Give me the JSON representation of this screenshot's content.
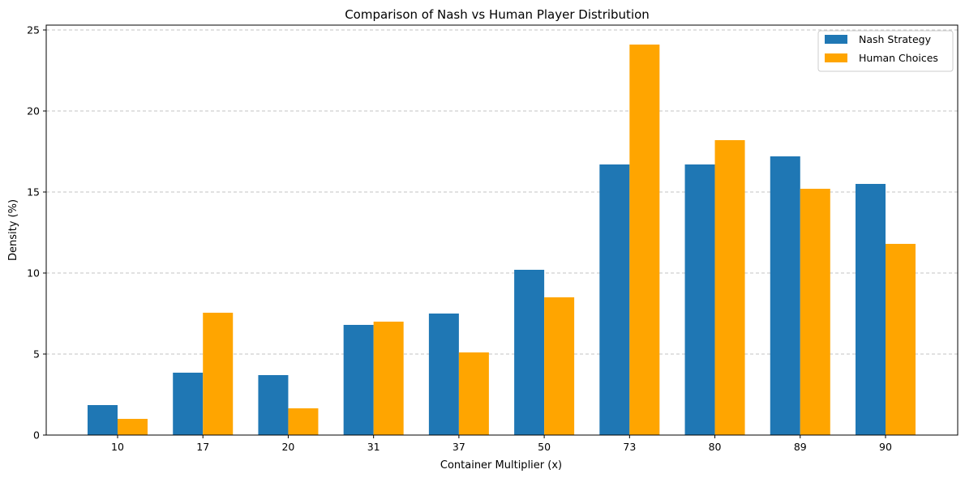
{
  "chart_data": {
    "type": "bar",
    "title": "Comparison of Nash vs Human Player Distribution",
    "xlabel": "Container Multiplier (x)",
    "ylabel": "Density (%)",
    "categories": [
      "10",
      "17",
      "20",
      "31",
      "37",
      "50",
      "73",
      "80",
      "89",
      "90"
    ],
    "series": [
      {
        "name": "Nash Strategy",
        "color": "#1f77b4",
        "values": [
          1.85,
          3.85,
          3.7,
          6.8,
          7.5,
          10.2,
          16.7,
          16.7,
          17.2,
          15.5
        ]
      },
      {
        "name": "Human Choices",
        "color": "#ffa500",
        "values": [
          1.0,
          7.55,
          1.65,
          7.0,
          5.1,
          8.5,
          24.1,
          18.2,
          15.2,
          11.8
        ]
      }
    ],
    "ylim": [
      0,
      25.3
    ],
    "yticks": [
      0,
      5,
      10,
      15,
      20,
      25
    ],
    "grid": "y-dashed",
    "legend_position": "top-right"
  }
}
